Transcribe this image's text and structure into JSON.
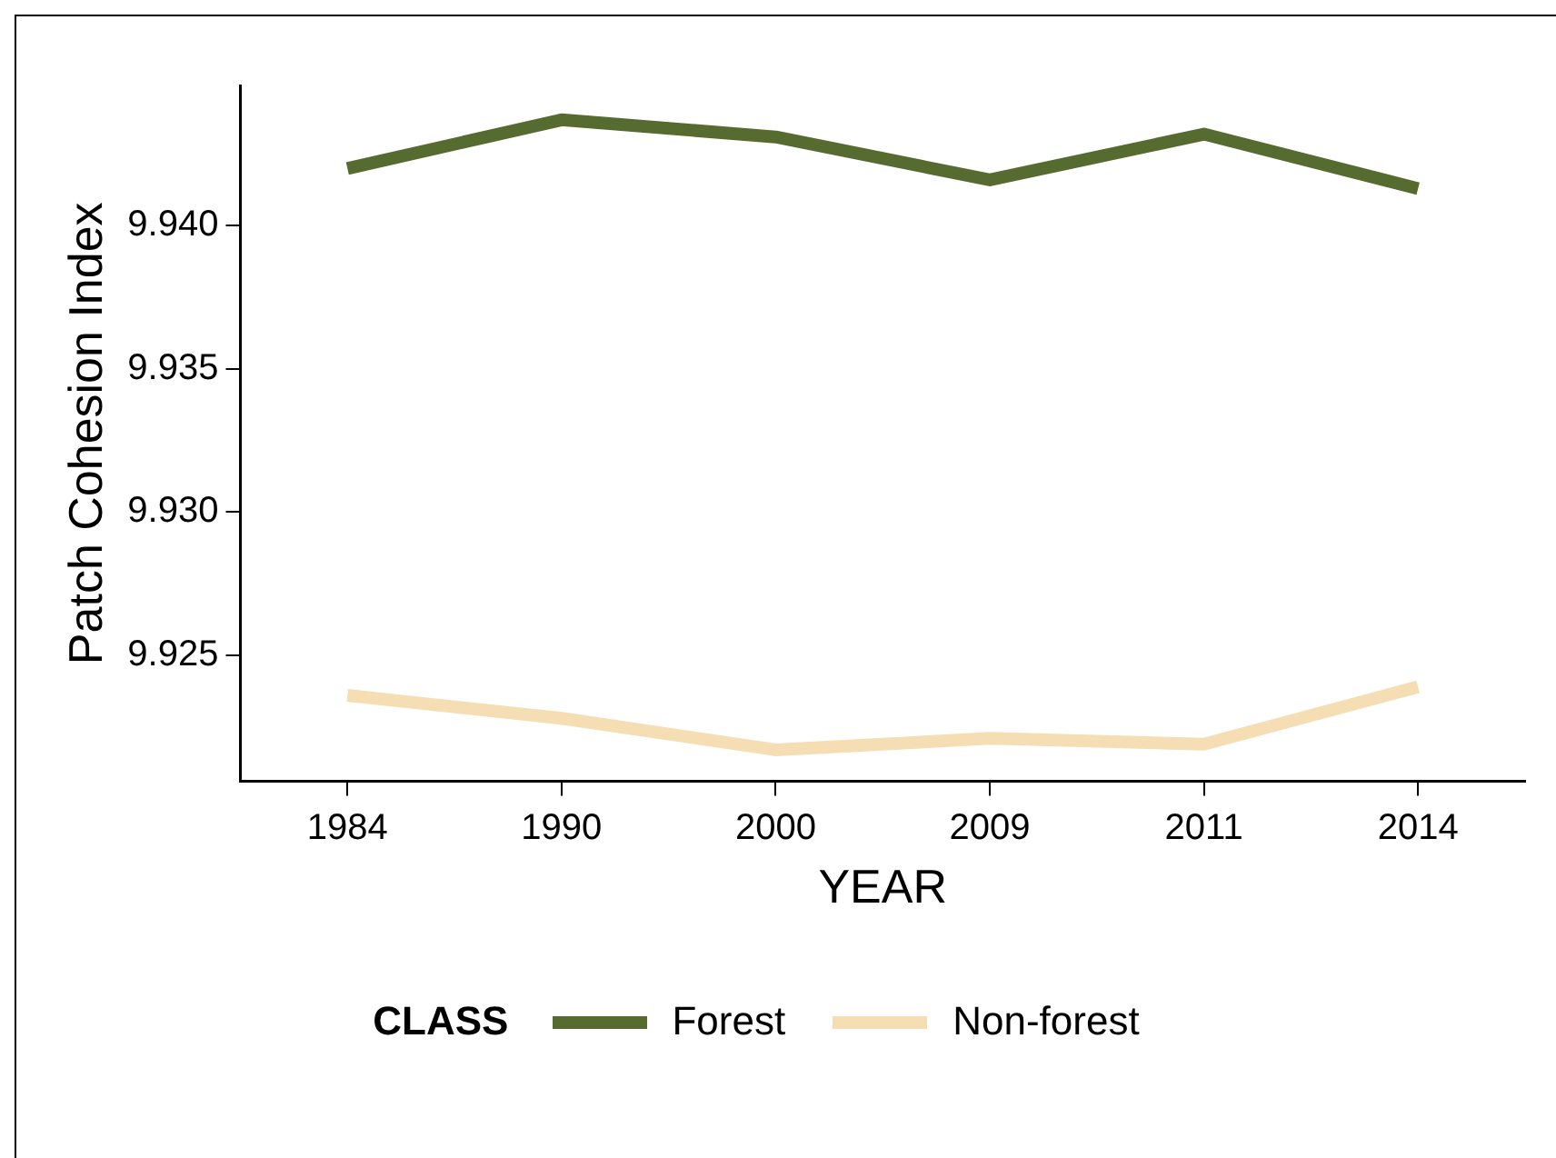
{
  "chart_data": {
    "type": "line",
    "xlabel": "YEAR",
    "ylabel": "Patch Cohesion Index",
    "legend_title": "CLASS",
    "legend": "bottom",
    "grid": false,
    "line_style": "solid",
    "marker": "none",
    "categories": [
      "1984",
      "1990",
      "2000",
      "2009",
      "2011",
      "2014"
    ],
    "ylim": [
      9.9206,
      9.9449
    ],
    "yticks": [
      9.925,
      {
        "value": 9.93,
        "label": "9.930"
      },
      9.935,
      {
        "value": 9.94,
        "label": "9.940"
      }
    ],
    "series": [
      {
        "name": "Forest",
        "color": "#556b2f",
        "values": [
          9.942,
          9.9437,
          9.9431,
          9.9416,
          9.9432,
          9.9413
        ]
      },
      {
        "name": "Non-forest",
        "color": "#f5deb3",
        "values": [
          9.9236,
          9.9228,
          9.9217,
          9.9221,
          9.9219,
          9.9239
        ]
      }
    ]
  }
}
